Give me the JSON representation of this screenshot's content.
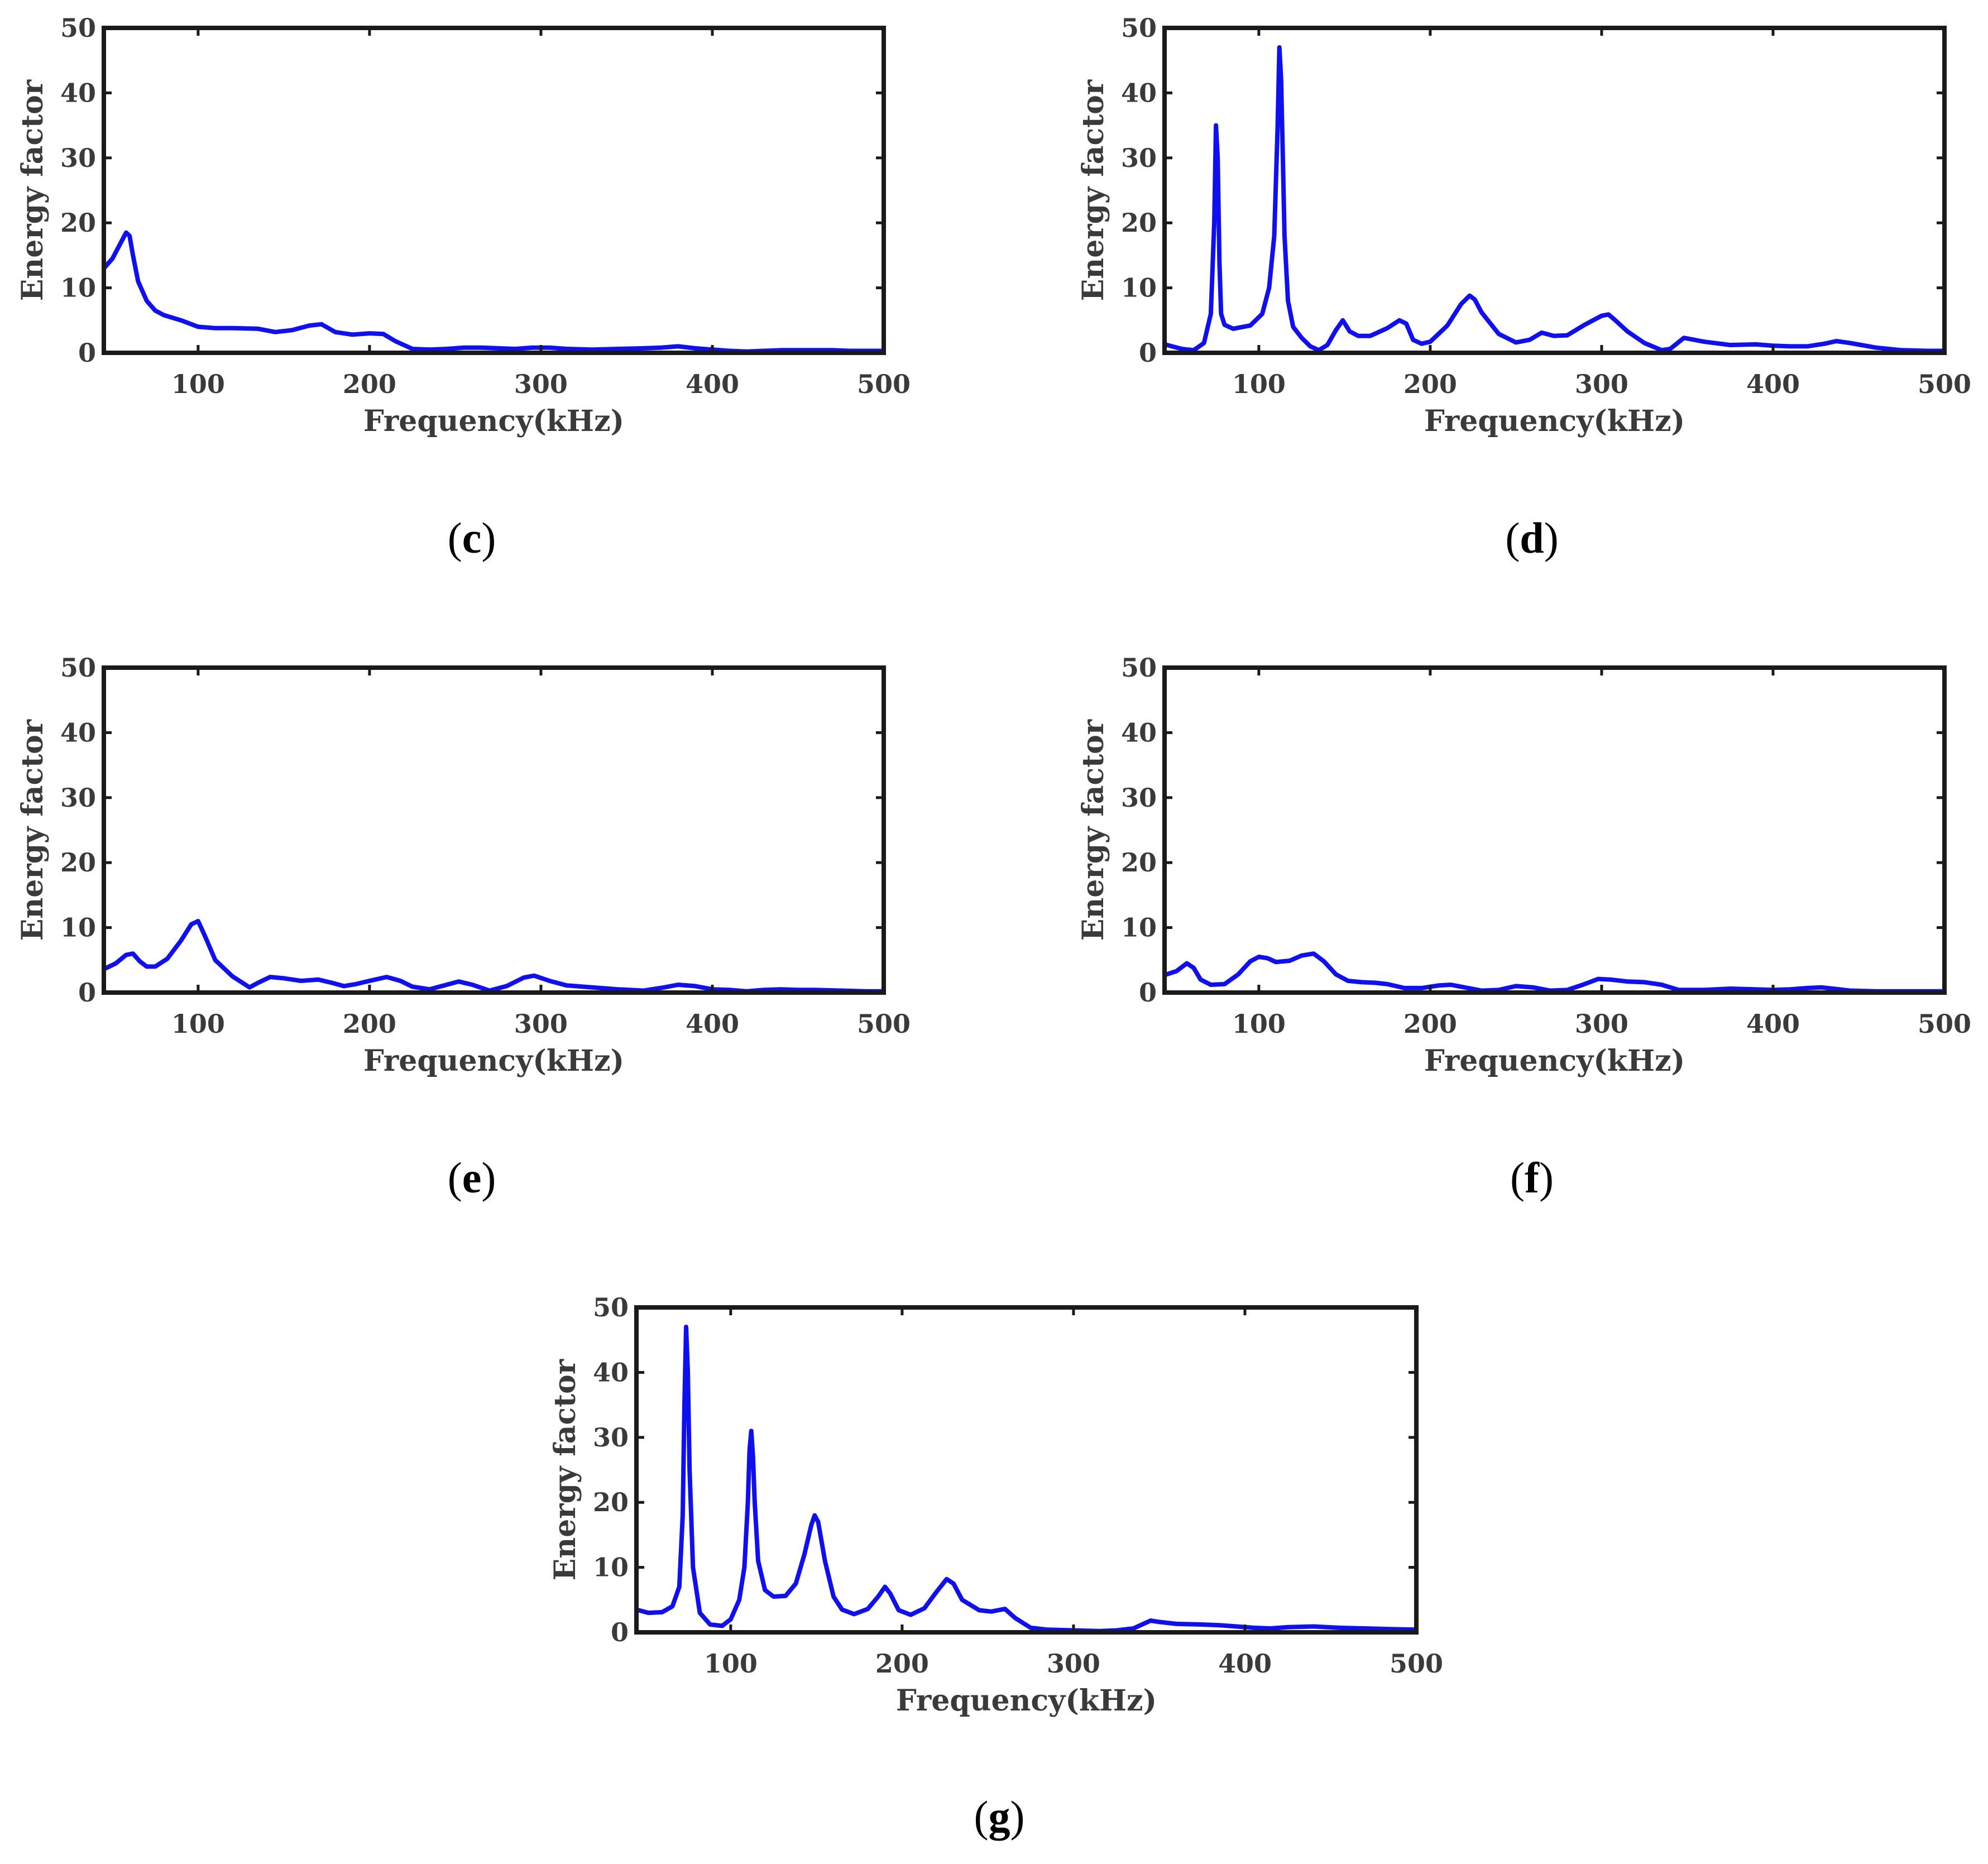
{
  "chart_data": [
    {
      "id": "c",
      "type": "line",
      "caption": "c",
      "xlabel": "Frequency(kHz)",
      "ylabel": "Energy factor",
      "xlim": [
        45,
        500
      ],
      "ylim": [
        0,
        50
      ],
      "xticks": [
        100,
        200,
        300,
        400,
        500
      ],
      "yticks": [
        0,
        10,
        20,
        30,
        40,
        50
      ],
      "series": [
        {
          "name": "energy",
          "color": "#1010ee",
          "x": [
            45,
            50,
            55,
            58,
            60,
            62,
            65,
            70,
            75,
            80,
            90,
            100,
            110,
            120,
            135,
            145,
            155,
            165,
            172,
            180,
            190,
            200,
            208,
            215,
            225,
            235,
            245,
            255,
            265,
            275,
            285,
            295,
            305,
            315,
            330,
            345,
            360,
            370,
            380,
            390,
            400,
            410,
            420,
            430,
            440,
            450,
            460,
            470,
            480,
            490,
            500
          ],
          "y": [
            13,
            14.5,
            17,
            18.5,
            18,
            15,
            11,
            8,
            6.5,
            5.8,
            5,
            4,
            3.8,
            3.8,
            3.7,
            3.2,
            3.5,
            4.2,
            4.4,
            3.2,
            2.8,
            3.0,
            2.9,
            1.8,
            0.6,
            0.5,
            0.6,
            0.8,
            0.8,
            0.7,
            0.6,
            0.8,
            0.8,
            0.6,
            0.5,
            0.6,
            0.7,
            0.8,
            1.0,
            0.7,
            0.5,
            0.3,
            0.2,
            0.3,
            0.4,
            0.4,
            0.4,
            0.4,
            0.3,
            0.3,
            0.3
          ]
        }
      ]
    },
    {
      "id": "d",
      "type": "line",
      "caption": "d",
      "xlabel": "Frequency(kHz)",
      "ylabel": "Energy factor",
      "xlim": [
        45,
        500
      ],
      "ylim": [
        0,
        50
      ],
      "xticks": [
        100,
        200,
        300,
        400,
        500
      ],
      "yticks": [
        0,
        10,
        20,
        30,
        40,
        50
      ],
      "series": [
        {
          "name": "energy",
          "color": "#1010ee",
          "x": [
            45,
            55,
            62,
            68,
            72,
            74,
            75,
            76,
            77,
            78,
            80,
            85,
            95,
            102,
            106,
            109,
            111,
            112,
            113,
            114,
            115,
            117,
            120,
            125,
            130,
            135,
            140,
            145,
            149,
            153,
            158,
            165,
            175,
            182,
            186,
            190,
            195,
            200,
            210,
            218,
            223,
            226,
            230,
            240,
            250,
            258,
            265,
            272,
            280,
            290,
            300,
            304,
            308,
            315,
            325,
            335,
            340,
            348,
            360,
            375,
            390,
            400,
            410,
            420,
            430,
            437,
            445,
            460,
            475,
            490,
            500
          ],
          "y": [
            1.3,
            0.6,
            0.4,
            1.5,
            6,
            20,
            35,
            30,
            14,
            6,
            4.3,
            3.7,
            4.2,
            6,
            10,
            18,
            35,
            47,
            42,
            30,
            18,
            8,
            4,
            2.3,
            1.0,
            0.4,
            1.2,
            3.5,
            5.0,
            3.3,
            2.6,
            2.6,
            3.8,
            5.0,
            4.5,
            2.0,
            1.4,
            1.7,
            4.2,
            7.5,
            8.8,
            8.2,
            6.2,
            2.9,
            1.6,
            2.0,
            3.1,
            2.6,
            2.7,
            4.3,
            5.7,
            5.9,
            5.0,
            3.3,
            1.5,
            0.4,
            0.6,
            2.3,
            1.7,
            1.2,
            1.3,
            1.1,
            1.0,
            1.0,
            1.4,
            1.8,
            1.5,
            0.8,
            0.4,
            0.3,
            0.3
          ]
        }
      ]
    },
    {
      "id": "e",
      "type": "line",
      "caption": "e",
      "xlabel": "Frequency(kHz)",
      "ylabel": "Energy factor",
      "xlim": [
        45,
        500
      ],
      "ylim": [
        0,
        50
      ],
      "xticks": [
        100,
        200,
        300,
        400,
        500
      ],
      "yticks": [
        0,
        10,
        20,
        30,
        40,
        50
      ],
      "series": [
        {
          "name": "energy",
          "color": "#1010ee",
          "x": [
            45,
            52,
            58,
            62,
            66,
            70,
            75,
            82,
            90,
            96,
            100,
            104,
            110,
            120,
            130,
            135,
            142,
            150,
            160,
            170,
            178,
            185,
            192,
            200,
            210,
            218,
            225,
            235,
            245,
            252,
            260,
            270,
            280,
            290,
            296,
            305,
            315,
            330,
            345,
            360,
            372,
            380,
            390,
            400,
            410,
            420,
            430,
            440,
            450,
            460,
            475,
            490,
            500
          ],
          "y": [
            3.6,
            4.5,
            5.8,
            6.0,
            4.8,
            4.0,
            4.0,
            5.2,
            8.0,
            10.5,
            11.0,
            8.7,
            5.0,
            2.5,
            0.8,
            1.5,
            2.4,
            2.2,
            1.8,
            2.0,
            1.5,
            1.0,
            1.3,
            1.8,
            2.4,
            1.8,
            0.9,
            0.5,
            1.2,
            1.7,
            1.2,
            0.3,
            1.0,
            2.3,
            2.6,
            1.8,
            1.1,
            0.8,
            0.5,
            0.3,
            0.8,
            1.2,
            1.0,
            0.5,
            0.4,
            0.2,
            0.4,
            0.5,
            0.4,
            0.4,
            0.3,
            0.2,
            0.2
          ]
        }
      ]
    },
    {
      "id": "f",
      "type": "line",
      "caption": "f",
      "xlabel": "Frequency(kHz)",
      "ylabel": "Energy factor",
      "xlim": [
        45,
        500
      ],
      "ylim": [
        0,
        50
      ],
      "xticks": [
        100,
        200,
        300,
        400,
        500
      ],
      "yticks": [
        0,
        10,
        20,
        30,
        40,
        50
      ],
      "series": [
        {
          "name": "energy",
          "color": "#1010ee",
          "x": [
            45,
            52,
            58,
            62,
            66,
            72,
            80,
            88,
            95,
            100,
            105,
            110,
            118,
            125,
            132,
            138,
            145,
            152,
            160,
            168,
            175,
            185,
            195,
            205,
            212,
            220,
            230,
            240,
            250,
            260,
            270,
            280,
            290,
            298,
            305,
            315,
            325,
            335,
            345,
            360,
            375,
            390,
            400,
            410,
            420,
            428,
            435,
            445,
            460,
            475,
            490,
            500
          ],
          "y": [
            2.7,
            3.3,
            4.5,
            3.8,
            2.0,
            1.2,
            1.3,
            2.8,
            4.8,
            5.5,
            5.3,
            4.7,
            4.9,
            5.7,
            6.0,
            4.8,
            2.8,
            1.8,
            1.6,
            1.5,
            1.3,
            0.7,
            0.7,
            1.1,
            1.2,
            0.8,
            0.3,
            0.4,
            1.0,
            0.8,
            0.3,
            0.4,
            1.3,
            2.1,
            2.0,
            1.7,
            1.6,
            1.2,
            0.4,
            0.4,
            0.6,
            0.5,
            0.4,
            0.5,
            0.7,
            0.8,
            0.6,
            0.3,
            0.2,
            0.2,
            0.2,
            0.2
          ]
        }
      ]
    },
    {
      "id": "g",
      "type": "line",
      "caption": "g",
      "xlabel": "Frequency(kHz)",
      "ylabel": "Energy factor",
      "xlim": [
        45,
        500
      ],
      "ylim": [
        0,
        50
      ],
      "xticks": [
        100,
        200,
        300,
        400,
        500
      ],
      "yticks": [
        0,
        10,
        20,
        30,
        40,
        50
      ],
      "series": [
        {
          "name": "energy",
          "color": "#1010ee",
          "x": [
            45,
            52,
            60,
            66,
            70,
            72,
            73,
            74,
            75,
            76,
            78,
            82,
            88,
            95,
            100,
            105,
            108,
            110,
            111,
            112,
            113,
            114,
            116,
            120,
            125,
            132,
            138,
            143,
            147,
            149,
            151,
            155,
            160,
            165,
            172,
            180,
            186,
            190,
            193,
            198,
            205,
            213,
            220,
            226,
            230,
            235,
            245,
            252,
            260,
            266,
            275,
            285,
            300,
            315,
            325,
            335,
            340,
            345,
            350,
            360,
            375,
            385,
            395,
            405,
            415,
            425,
            440,
            455,
            470,
            485,
            500
          ],
          "y": [
            3.5,
            3.0,
            3.1,
            4.0,
            7.0,
            18,
            35,
            47,
            40,
            25,
            10,
            3.0,
            1.2,
            1.0,
            2.0,
            5.0,
            10,
            20,
            28,
            31,
            27,
            20,
            11,
            6.5,
            5.5,
            5.6,
            7.5,
            12,
            16.5,
            18,
            17,
            11,
            5.5,
            3.5,
            2.8,
            3.6,
            5.5,
            7.0,
            6.0,
            3.4,
            2.7,
            3.7,
            6.2,
            8.2,
            7.5,
            5.0,
            3.4,
            3.2,
            3.6,
            2.2,
            0.7,
            0.4,
            0.3,
            0.2,
            0.3,
            0.6,
            1.2,
            1.8,
            1.6,
            1.3,
            1.2,
            1.1,
            0.9,
            0.7,
            0.6,
            0.8,
            0.9,
            0.7,
            0.6,
            0.5,
            0.4
          ]
        }
      ]
    }
  ]
}
